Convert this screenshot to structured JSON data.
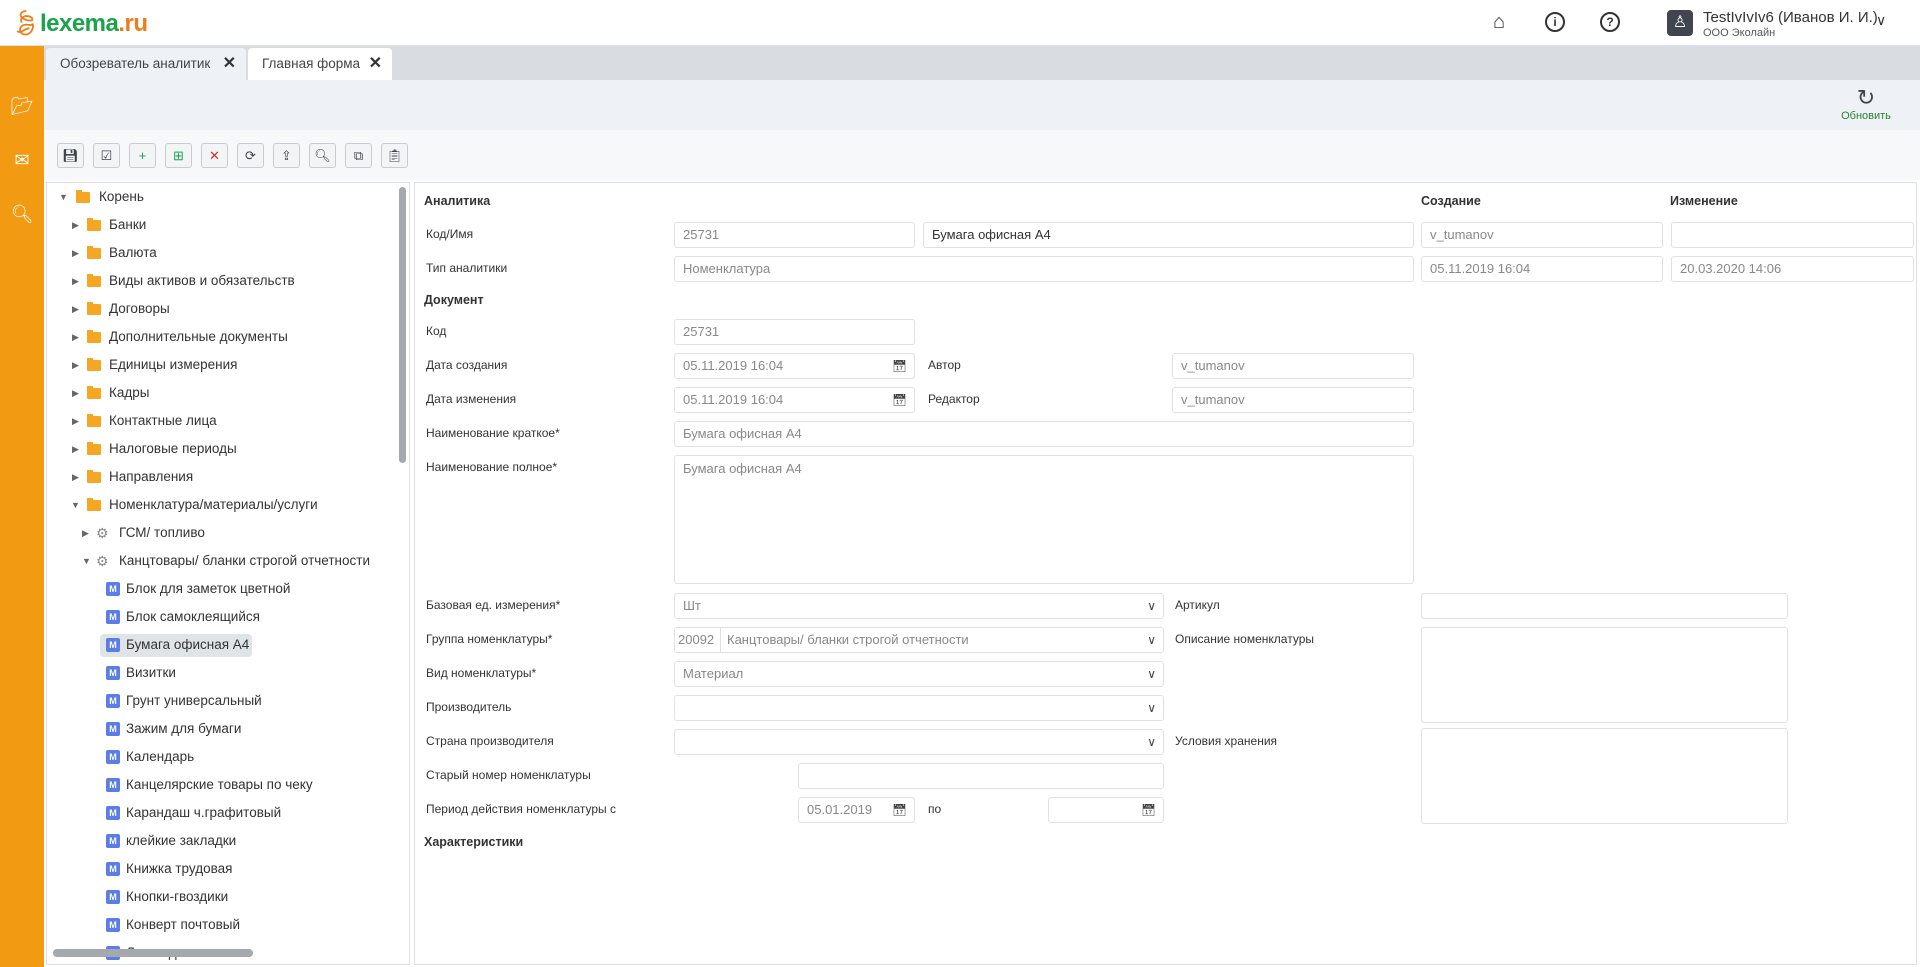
{
  "header": {
    "logo": {
      "part1": "lexema",
      "part2": ".ru"
    },
    "icons": [
      "home-icon",
      "info-icon",
      "help-icon"
    ],
    "user_name": "TestIvIvIv6 (Иванов И. И.)",
    "organization": "ООО Эколайн"
  },
  "sidebar": {
    "icons": [
      "folder-open-icon",
      "mail-icon",
      "search-icon"
    ]
  },
  "tabs": [
    {
      "label": "Обозреватель аналитик",
      "active": false
    },
    {
      "label": "Главная форма",
      "active": true
    }
  ],
  "actions": {
    "refresh_label": "Обновить"
  },
  "toolbar": {
    "buttons": [
      "save-icon",
      "check-list-icon",
      "add-item-icon",
      "add-subitem-icon",
      "delete-item-icon",
      "sync-icon",
      "upload-icon",
      "search-icon",
      "copy-icon",
      "paste-icon"
    ]
  },
  "tree": {
    "root": "Корень",
    "folders": [
      "Банки",
      "Валюта",
      "Виды активов и обязательств",
      "Договоры",
      "Дополнительные документы",
      "Единицы измерения",
      "Кадры",
      "Контактные лица",
      "Налоговые периоды",
      "Направления"
    ],
    "expanded_folder": "Номенклатура/материалы/услуги",
    "groups": [
      "ГСМ/ топливо",
      "Канцтовары/ бланки строгой отчетности"
    ],
    "items": [
      "Блок для заметок цветной",
      "Блок самоклеящийся",
      "Бумага офисная А4",
      "Визитки",
      "Грунт универсальный",
      "Зажим для бумаги",
      "Календарь",
      "Канцелярские товары по чеку",
      "Карандаш ч.графитовый",
      "клейкие закладки",
      "Книжка трудовая",
      "Кнопки-гвоздики",
      "Конверт почтовый",
      "Листы для записи"
    ],
    "selected": "Бумага офисная А4"
  },
  "form": {
    "analytics": {
      "title": "Аналитика",
      "code_name_label": "Код/Имя",
      "code": "25731",
      "name": "Бумага офисная А4",
      "type_label": "Тип аналитики",
      "type": "Номенклатура",
      "created_header": "Создание",
      "changed_header": "Изменение",
      "created_by": "v_tumanov",
      "changed_by": "",
      "created_at": "05.11.2019 16:04",
      "changed_at": "20.03.2020 14:06"
    },
    "document": {
      "title": "Документ",
      "code_label": "Код",
      "code": "25731",
      "created_label": "Дата создания",
      "created": "05.11.2019 16:04",
      "author_label": "Автор",
      "author": "v_tumanov",
      "changed_label": "Дата изменения",
      "changed": "05.11.2019 16:04",
      "editor_label": "Редактор",
      "editor": "v_tumanov",
      "short_name_label": "Наименование краткое*",
      "short_name": "Бумага офисная А4",
      "full_name_label": "Наименование полное*",
      "full_name": "Бумага офисная А4",
      "unit_label": "Базовая ед. измерения*",
      "unit": "Шт",
      "group_label": "Группа номенклатуры*",
      "group_code": "20092",
      "group": "Канцтовары/ бланки строгой отчетности",
      "kind_label": "Вид номенклатуры*",
      "kind": "Материал",
      "manufacturer_label": "Производитель",
      "manufacturer": "",
      "country_label": "Страна производителя",
      "country": "",
      "old_number_label": "Старый номер номенклатуры",
      "old_number": "",
      "period_label": "Период действия номенклатуры с",
      "period_from": "05.01.2019",
      "period_to_label": "по",
      "period_to": "",
      "article_label": "Артикул",
      "article": "",
      "description_label": "Описание номенклатуры",
      "description": "",
      "storage_label": "Условия хранения",
      "storage": ""
    },
    "characteristics_title": "Характеристики"
  }
}
